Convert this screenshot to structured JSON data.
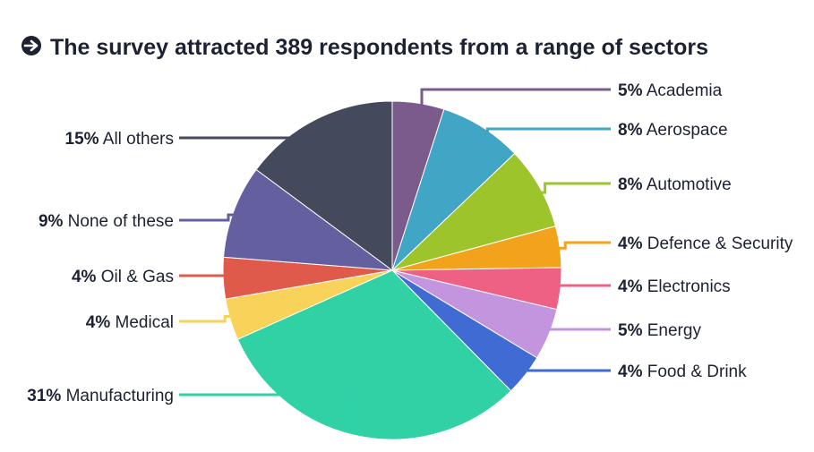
{
  "chart_data": {
    "type": "pie",
    "title": "The survey attracted 389 respondents from a range of sectors",
    "slices": [
      {
        "label": "Academia",
        "pct_label": "5%",
        "value": 5,
        "color": "#7a5b8c"
      },
      {
        "label": "Aerospace",
        "pct_label": "8%",
        "value": 8,
        "color": "#41a5c6"
      },
      {
        "label": "Automotive",
        "pct_label": "8%",
        "value": 8,
        "color": "#9dc42b"
      },
      {
        "label": "Defence & Security",
        "pct_label": "4%",
        "value": 4,
        "color": "#f3a21c"
      },
      {
        "label": "Electronics",
        "pct_label": "4%",
        "value": 4,
        "color": "#ee6184"
      },
      {
        "label": "Energy",
        "pct_label": "5%",
        "value": 5,
        "color": "#c395df"
      },
      {
        "label": "Food & Drink",
        "pct_label": "4%",
        "value": 4,
        "color": "#3f6bd2"
      },
      {
        "label": "Manufacturing",
        "pct_label": "31%",
        "value": 31,
        "color": "#2fd1a5"
      },
      {
        "label": "Medical",
        "pct_label": "4%",
        "value": 4,
        "color": "#f9d25a"
      },
      {
        "label": "Oil & Gas",
        "pct_label": "4%",
        "value": 4,
        "color": "#e05a4c"
      },
      {
        "label": "None of these",
        "pct_label": "9%",
        "value": 9,
        "color": "#64609f"
      },
      {
        "label": "All others",
        "pct_label": "15%",
        "value": 15,
        "color": "#444a5c"
      }
    ]
  },
  "colors": {
    "text": "#1d2233",
    "icon": "#1d2233"
  },
  "icons": {
    "title_icon": "arrow-right-circle-icon"
  }
}
